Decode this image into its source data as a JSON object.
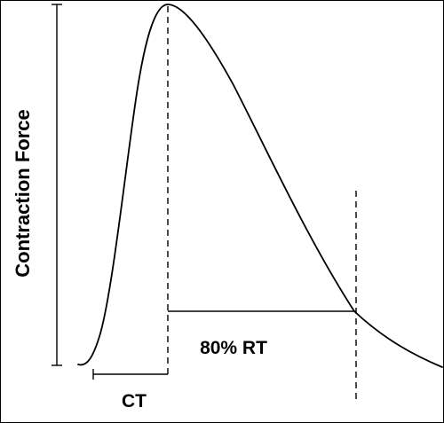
{
  "diagram": {
    "y_axis_label": "Contraction Force",
    "contraction_time_label": "CT",
    "relaxation_time_label": "80% RT"
  }
}
